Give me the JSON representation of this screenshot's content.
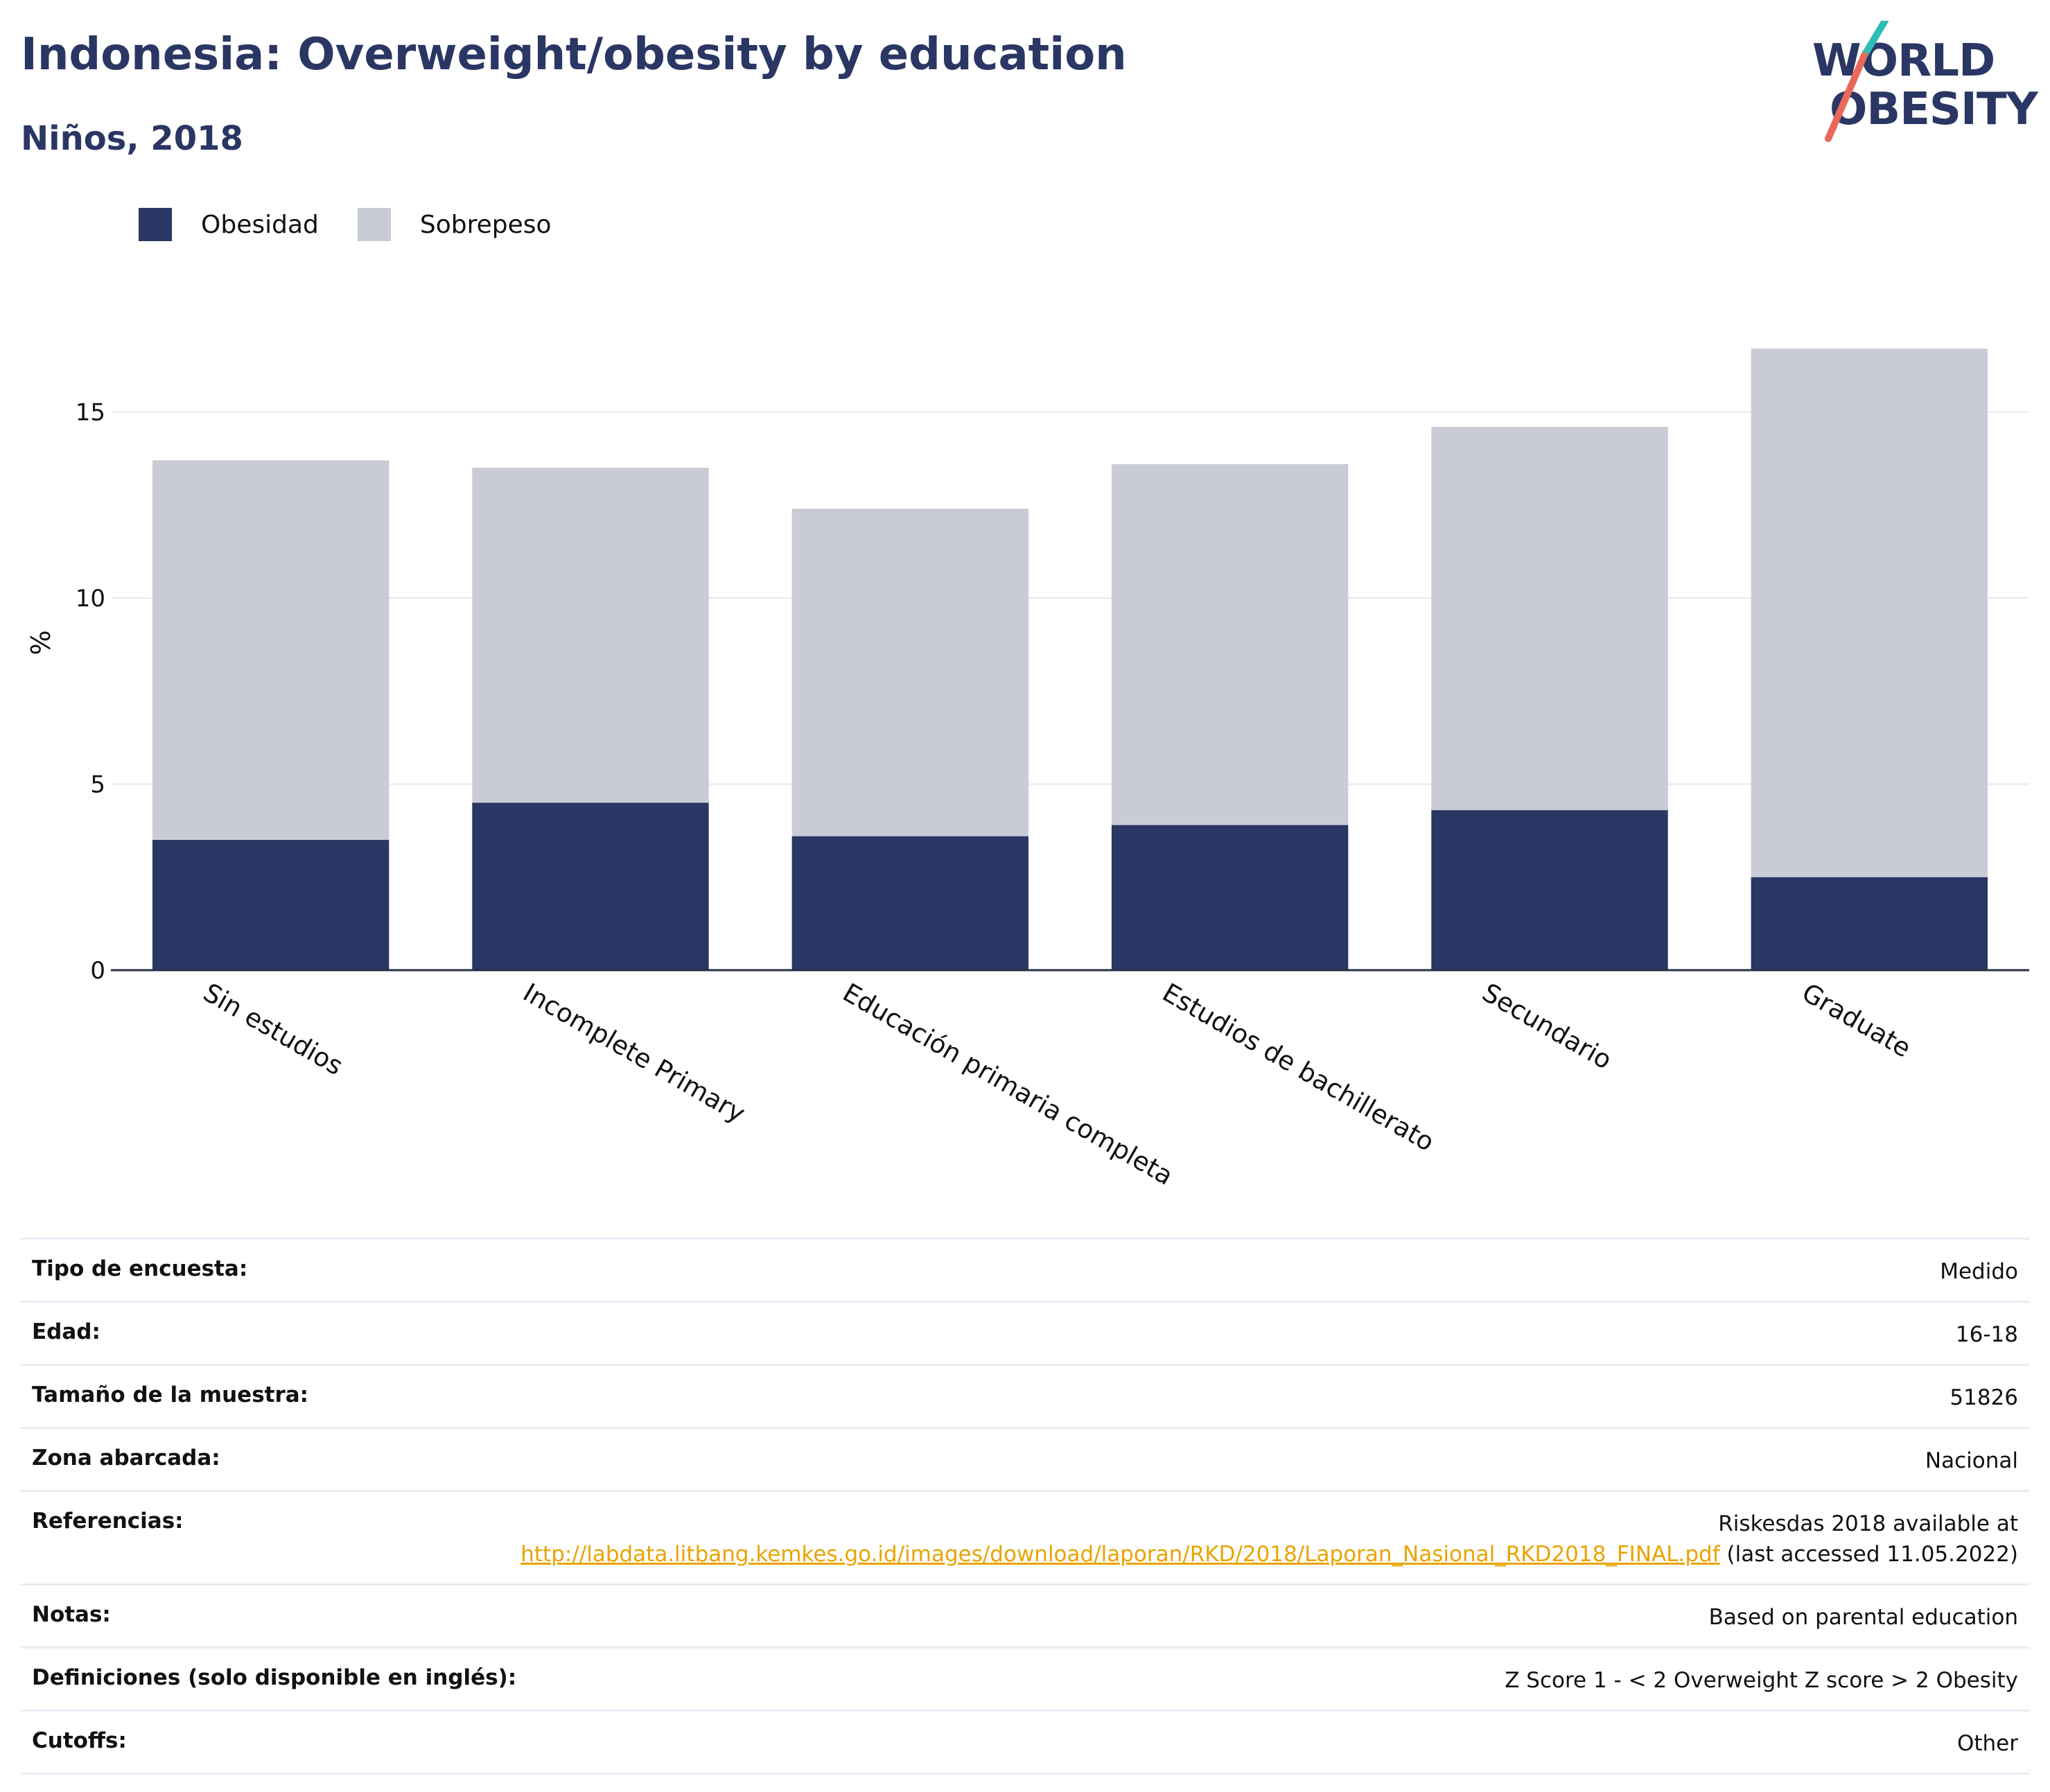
{
  "header": {
    "title": "Indonesia: Overweight/obesity by education",
    "subtitle": "Niños, 2018"
  },
  "logo": {
    "line1": "WORLD",
    "line2": "OBESITY",
    "slash_colors": [
      "#2ebdb5",
      "#e8695a"
    ]
  },
  "colors": {
    "obesity": "#2a3663",
    "overweight": "#c9cbd6",
    "text_dark": "#2a3663",
    "link": "#e8a400",
    "grid": "#e6e8ee",
    "axis": "#2a2f45"
  },
  "legend": {
    "obesity_label": "Obesidad",
    "overweight_label": "Sobrepeso"
  },
  "chart_data": {
    "type": "bar",
    "stacked": true,
    "ylabel": "%",
    "xlabel": "",
    "ylim": [
      0,
      17.5
    ],
    "yticks": [
      0,
      5,
      10,
      15
    ],
    "grid": true,
    "legend_position": "top-left",
    "categories": [
      "Sin estudios",
      "Incomplete Primary",
      "Educación primaria completa",
      "Estudios de bachillerato",
      "Secundario",
      "Graduate"
    ],
    "series": [
      {
        "name": "Obesidad",
        "values": [
          3.5,
          4.5,
          3.6,
          3.9,
          4.3,
          2.5
        ]
      },
      {
        "name": "Sobrepeso",
        "values": [
          10.2,
          9.0,
          8.8,
          9.7,
          10.3,
          14.2
        ]
      }
    ]
  },
  "meta": {
    "rows": [
      {
        "label": "Tipo de encuesta:",
        "value": "Medido"
      },
      {
        "label": "Edad:",
        "value": "16-18"
      },
      {
        "label": "Tamaño de la muestra:",
        "value": "51826"
      },
      {
        "label": "Zona abarcada:",
        "value": "Nacional"
      },
      {
        "label": "Notas:",
        "value": "Based on parental education"
      },
      {
        "label": "Definiciones (solo disponible en inglés):",
        "value": "Z Score 1 - < 2 Overweight Z score > 2 Obesity"
      },
      {
        "label": "Cutoffs:",
        "value": "Other"
      }
    ],
    "references": {
      "label": "Referencias:",
      "text_before": "Riskesdas 2018 available at",
      "link": "http://labdata.litbang.kemkes.go.id/images/download/laporan/RKD/2018/Laporan_Nasional_RKD2018_FINAL.pdf",
      "text_after": "(last accessed 11.05.2022)"
    }
  }
}
